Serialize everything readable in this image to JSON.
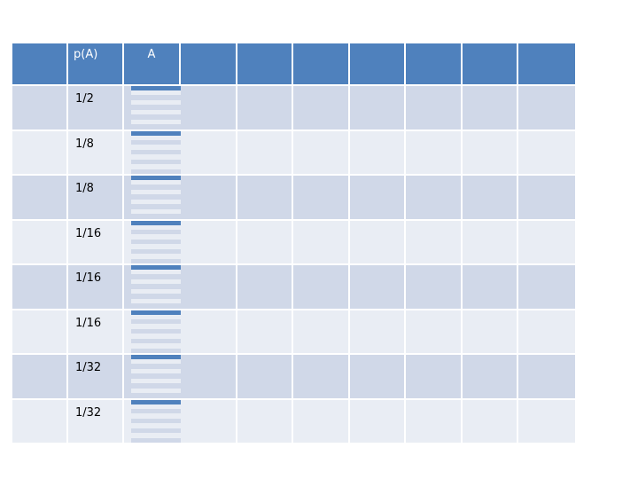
{
  "table": {
    "headers": [
      "p(A)",
      "A",
      "",
      "",
      "",
      "",
      "",
      "",
      "",
      ""
    ],
    "rows": [
      {
        "p": "1/2"
      },
      {
        "p": "1/8"
      },
      {
        "p": "1/8"
      },
      {
        "p": "1/16"
      },
      {
        "p": "1/16"
      },
      {
        "p": "1/16"
      },
      {
        "p": "1/32"
      },
      {
        "p": "1/32"
      }
    ]
  },
  "colors": {
    "header": "#4f81bd",
    "row_dark": "#d0d8e8",
    "row_light": "#e9edf4"
  }
}
